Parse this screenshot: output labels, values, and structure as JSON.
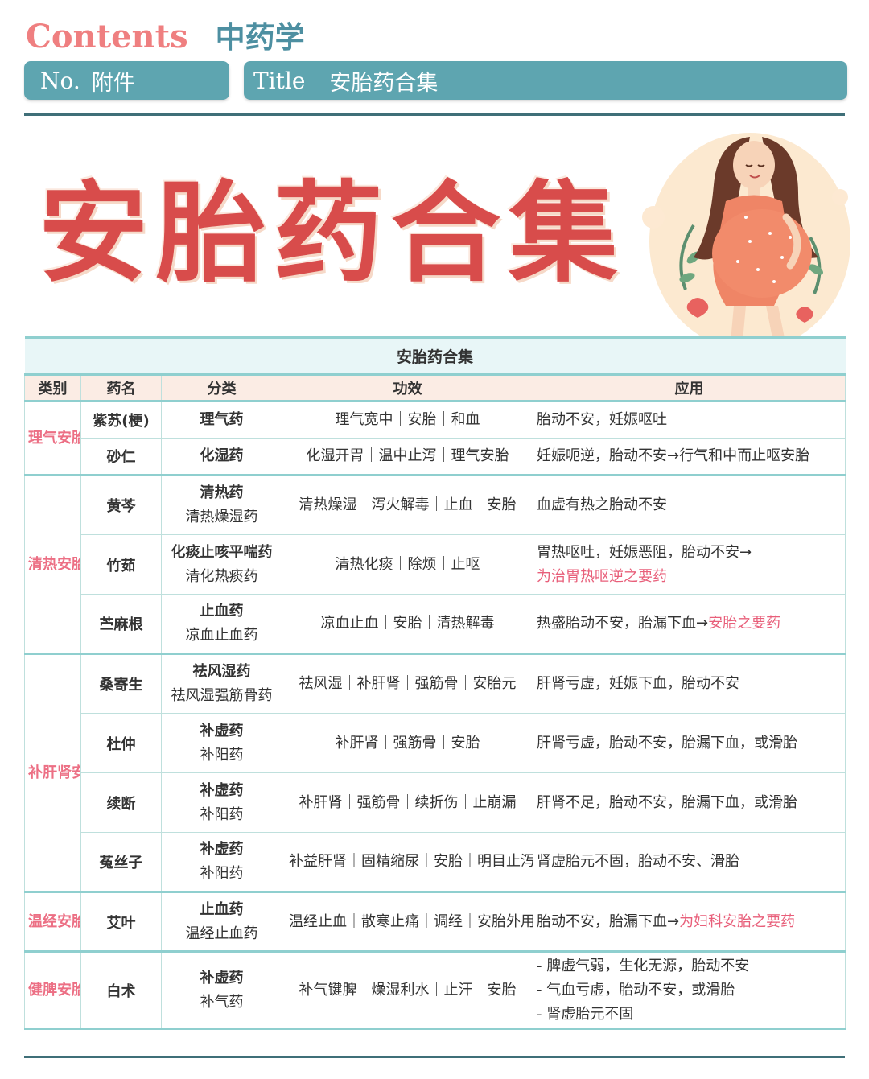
{
  "header": {
    "contents_label": "Contents",
    "subject": "中药学",
    "no_label": "No.",
    "no_value": "附件",
    "title_label": "Title",
    "title_value": "安胎药合集"
  },
  "hero": {
    "title": "安胎药合集",
    "illustration": "pregnant-woman-illustration"
  },
  "table": {
    "caption": "安胎药合集",
    "columns": [
      "类别",
      "药名",
      "分类",
      "功效",
      "应用"
    ],
    "groups": [
      {
        "category": "理气安胎",
        "rows": [
          {
            "name": "紫苏(梗)",
            "cls1": "理气药",
            "cls2": "",
            "effect": "理气宽中｜安胎｜和血",
            "app": "胎动不安，妊娠呕吐",
            "app_hl": ""
          },
          {
            "name": "砂仁",
            "cls1": "化湿药",
            "cls2": "",
            "effect": "化湿开胃｜温中止泻｜理气安胎",
            "app": "妊娠呃逆，胎动不安→行气和中而止呕安胎",
            "app_hl": ""
          }
        ]
      },
      {
        "category": "清热安胎",
        "rows": [
          {
            "name": "黄芩",
            "cls1": "清热药",
            "cls2": "清热燥湿药",
            "effect": "清热燥湿｜泻火解毒｜止血｜安胎",
            "app": "血虚有热之胎动不安",
            "app_hl": ""
          },
          {
            "name": "竹茹",
            "cls1": "化痰止咳平喘药",
            "cls2": "清化热痰药",
            "effect": "清热化痰｜除烦｜止呕",
            "app": "胃热呕吐，妊娠恶阻，胎动不安→",
            "app_hl": "为治胃热呕逆之要药"
          },
          {
            "name": "苎麻根",
            "cls1": "止血药",
            "cls2": "凉血止血药",
            "effect": "凉血止血｜安胎｜清热解毒",
            "app": "热盛胎动不安，胎漏下血→",
            "app_hl": "安胎之要药"
          }
        ]
      },
      {
        "category": "补肝肾安胎",
        "rows": [
          {
            "name": "桑寄生",
            "cls1": "祛风湿药",
            "cls2": "祛风湿强筋骨药",
            "effect": "祛风湿｜补肝肾｜强筋骨｜安胎元",
            "app": "肝肾亏虚，妊娠下血，胎动不安",
            "app_hl": ""
          },
          {
            "name": "杜仲",
            "cls1": "补虚药",
            "cls2": "补阳药",
            "effect": "补肝肾｜强筋骨｜安胎",
            "app": "肝肾亏虚，胎动不安，胎漏下血，或滑胎",
            "app_hl": ""
          },
          {
            "name": "续断",
            "cls1": "补虚药",
            "cls2": "补阳药",
            "effect": "补肝肾｜强筋骨｜续折伤｜止崩漏",
            "app": "肝肾不足，胎动不安，胎漏下血，或滑胎",
            "app_hl": ""
          },
          {
            "name": "菟丝子",
            "cls1": "补虚药",
            "cls2": "补阳药",
            "effect": "补益肝肾｜固精缩尿｜安胎｜明目止泻｜外用消风祛斑",
            "app": "肾虚胎元不固，胎动不安、滑胎",
            "app_hl": ""
          }
        ]
      },
      {
        "category": "温经安胎",
        "rows": [
          {
            "name": "艾叶",
            "cls1": "止血药",
            "cls2": "温经止血药",
            "effect": "温经止血｜散寒止痛｜调经｜安胎外用祛湿止痒",
            "app": "胎动不安，胎漏下血→",
            "app_hl": "为妇科安胎之要药"
          }
        ]
      },
      {
        "category": "健脾安胎",
        "rows": [
          {
            "name": "白术",
            "cls1": "补虚药",
            "cls2": "补气药",
            "effect": "补气键脾｜燥湿利水｜止汗｜安胎",
            "app_lines": [
              "- 脾虚气弱，生化无源，胎动不安",
              "- 气血亏虚，胎动不安，或滑胎",
              "- 肾虚胎元不固"
            ]
          }
        ]
      }
    ]
  },
  "colors": {
    "accent": "#5ea5b0",
    "title_red": "#d84c4b",
    "category_pink": "#ec6f84",
    "rule_teal": "#8fcfcf"
  }
}
